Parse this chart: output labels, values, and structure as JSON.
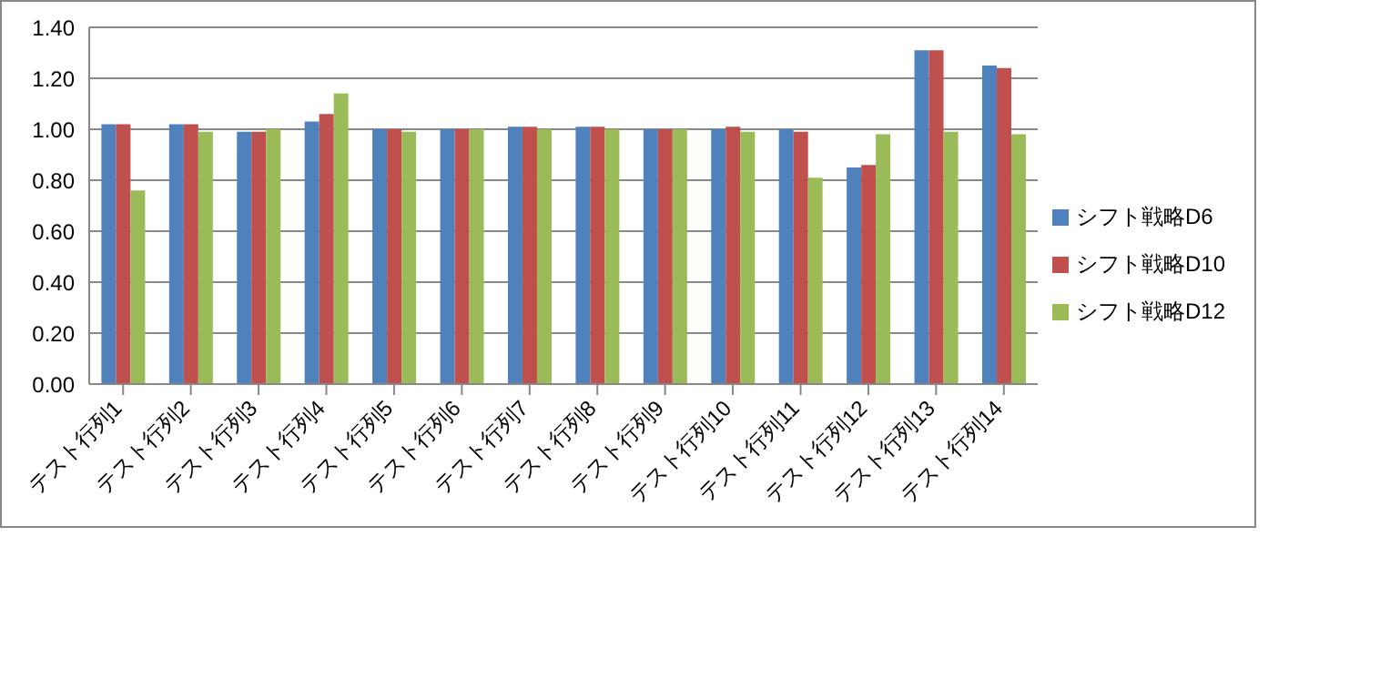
{
  "chart_data": {
    "type": "bar",
    "categories": [
      "テスト行列1",
      "テスト行列2",
      "テスト行列3",
      "テスト行列4",
      "テスト行列5",
      "テスト行列6",
      "テスト行列7",
      "テスト行列8",
      "テスト行列9",
      "テスト行列10",
      "テスト行列11",
      "テスト行列12",
      "テスト行列13",
      "テスト行列14"
    ],
    "series": [
      {
        "name": "シフト戦略D6",
        "color": "#4f81bd",
        "values": [
          1.02,
          1.02,
          0.99,
          1.03,
          1.0,
          1.0,
          1.01,
          1.01,
          1.0,
          1.0,
          1.0,
          0.85,
          1.31,
          1.25
        ]
      },
      {
        "name": "シフト戦略D10",
        "color": "#c0504d",
        "values": [
          1.02,
          1.02,
          0.99,
          1.06,
          1.0,
          1.0,
          1.01,
          1.01,
          1.0,
          1.01,
          0.99,
          0.86,
          1.31,
          1.24
        ]
      },
      {
        "name": "シフト戦略D12",
        "color": "#9bbb59",
        "values": [
          0.76,
          0.99,
          1.0,
          1.14,
          0.99,
          1.0,
          1.0,
          1.0,
          1.0,
          0.99,
          0.81,
          0.98,
          0.99,
          0.98
        ]
      }
    ],
    "ylim": [
      0,
      1.4
    ],
    "yticks": [
      {
        "value": 0,
        "label": "0.00"
      },
      {
        "value": 0.2,
        "label": "0.20"
      },
      {
        "value": 0.4,
        "label": "0.40"
      },
      {
        "value": 0.6,
        "label": "0.60"
      },
      {
        "value": 0.8,
        "label": "0.80"
      },
      {
        "value": 1,
        "label": "1.00"
      },
      {
        "value": 1.2,
        "label": "1.20"
      },
      {
        "value": 1.4,
        "label": "1.40"
      }
    ],
    "grid": "y",
    "legend": "right"
  }
}
